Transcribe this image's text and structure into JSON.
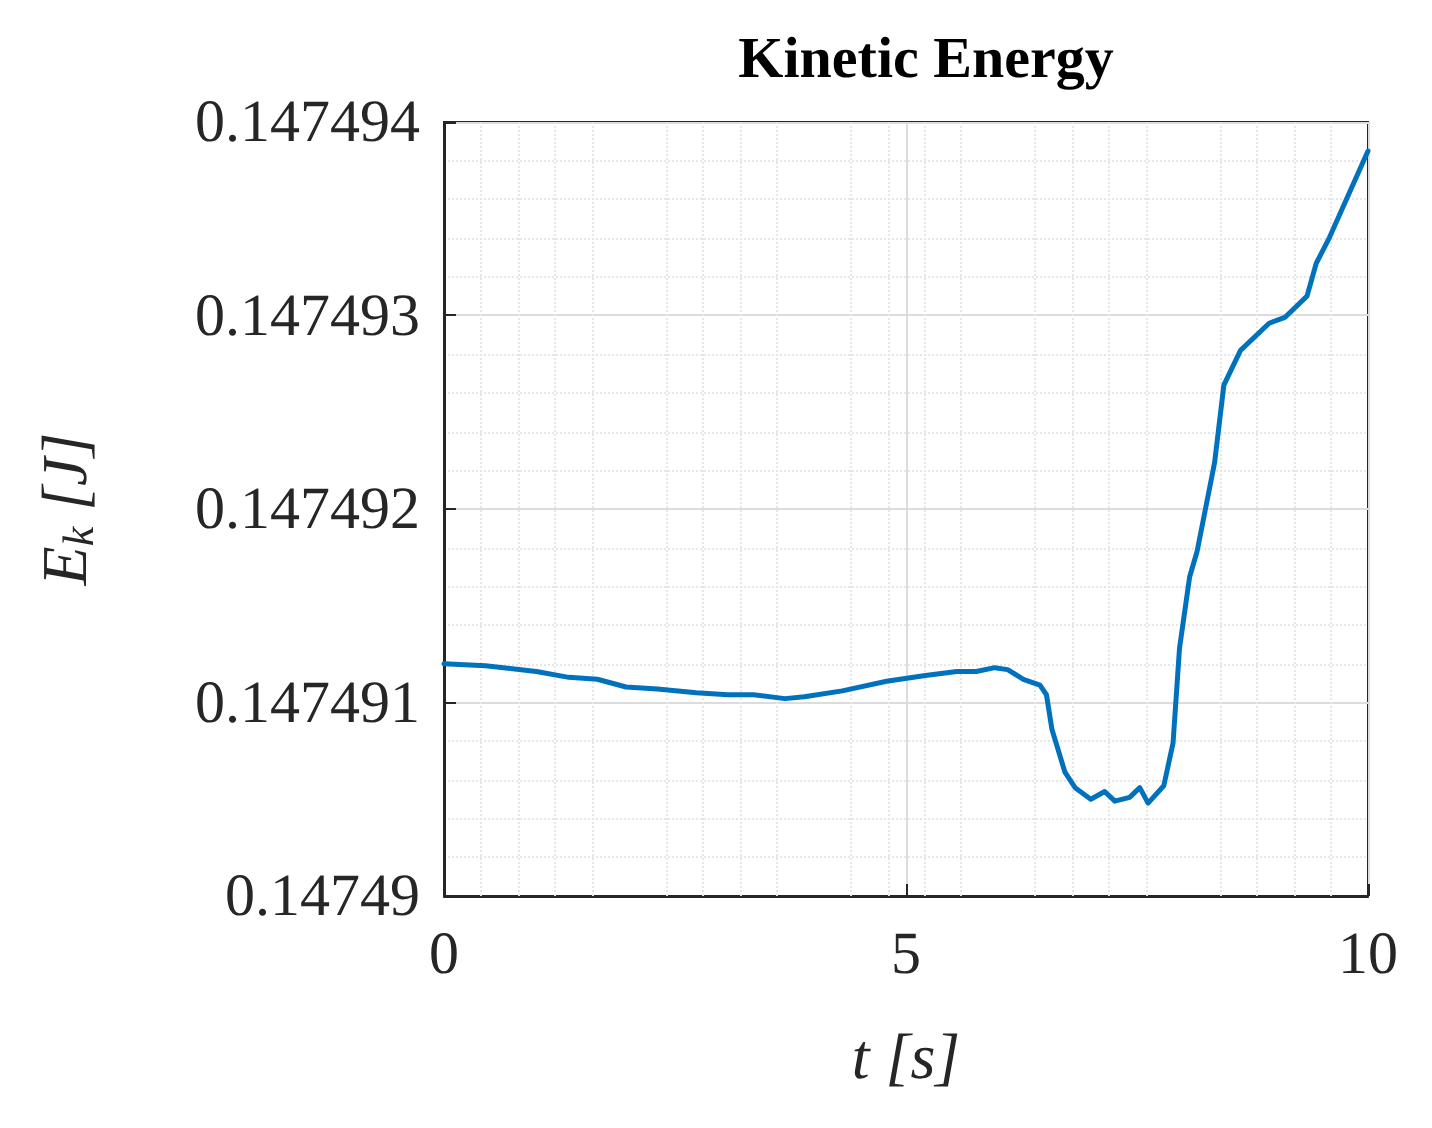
{
  "chart_data": {
    "type": "line",
    "title": "Kinetic Energy",
    "xlabel": "t [s]",
    "ylabel": "E$_{k}$ [J]",
    "x": [
      0,
      0.45,
      1.0,
      1.35,
      1.66,
      1.97,
      2.31,
      2.73,
      3.07,
      3.35,
      3.69,
      3.9,
      4.31,
      4.79,
      5.21,
      5.55,
      5.76,
      5.96,
      6.1,
      6.27,
      6.45,
      6.52,
      6.58,
      6.72,
      6.83,
      7.0,
      7.15,
      7.26,
      7.42,
      7.53,
      7.62,
      7.79,
      7.89,
      7.96,
      8.07,
      8.15,
      8.34,
      8.44,
      8.62,
      8.93,
      9.1,
      9.34,
      9.44,
      9.58,
      10.0
    ],
    "series": [
      {
        "color": "#0072bd",
        "values": [
          0.1474912,
          0.14749119,
          0.14749116,
          0.14749113,
          0.14749112,
          0.14749108,
          0.14749107,
          0.14749105,
          0.14749104,
          0.14749104,
          0.14749102,
          0.14749103,
          0.14749106,
          0.14749111,
          0.14749114,
          0.14749116,
          0.14749116,
          0.14749118,
          0.14749117,
          0.14749112,
          0.14749109,
          0.14749104,
          0.14749086,
          0.14749064,
          0.14749056,
          0.1474905,
          0.14749054,
          0.14749049,
          0.14749051,
          0.14749056,
          0.14749048,
          0.14749057,
          0.14749079,
          0.14749128,
          0.14749165,
          0.14749178,
          0.14749224,
          0.14749264,
          0.14749282,
          0.14749296,
          0.14749299,
          0.1474931,
          0.14749327,
          0.1474934,
          0.14749385
        ]
      }
    ],
    "xlim": [
      0,
      10
    ],
    "xticks": [
      0,
      5,
      10
    ],
    "ylim": [
      0.14749,
      0.147494
    ],
    "yticks": [
      0.14749,
      0.147491,
      0.147492,
      0.147493,
      0.147494
    ],
    "grid": true,
    "line_style": "solid",
    "marker": "none"
  }
}
